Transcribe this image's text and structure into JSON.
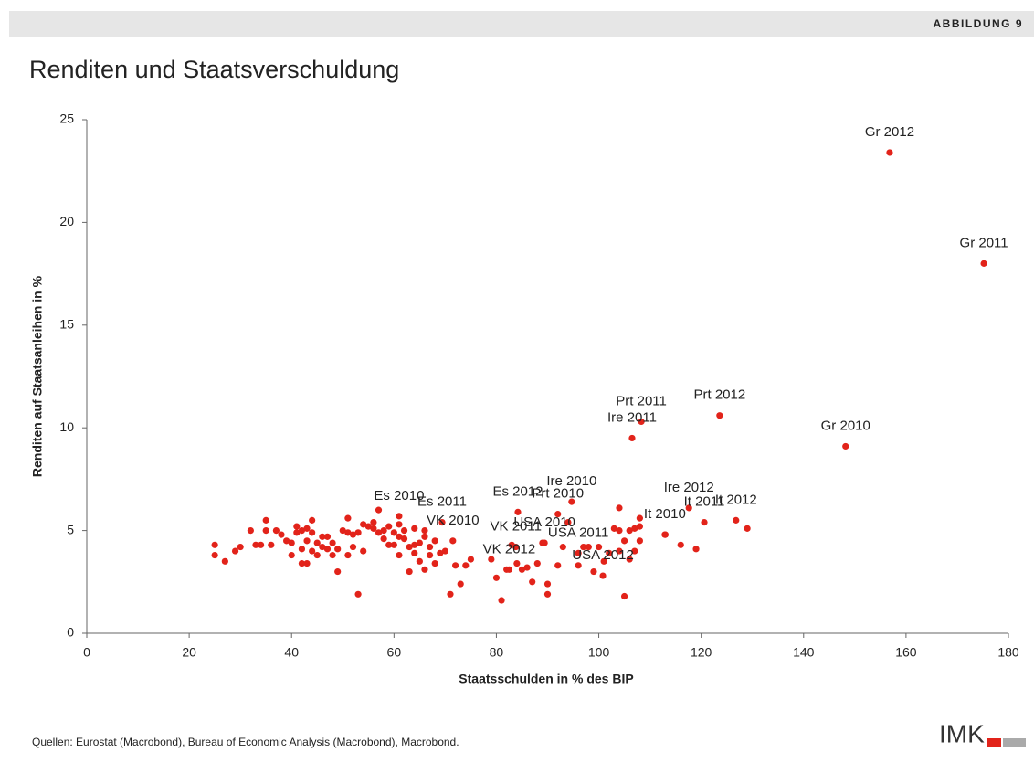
{
  "header": {
    "figure": "ABBILDUNG 9"
  },
  "footer": {
    "source": "Quellen: Eurostat (Macrobond), Bureau of Economic Analysis (Macrobond), Macrobond.",
    "logo": "IMK"
  },
  "chart_data": {
    "type": "scatter",
    "title": "Renditen und Staatsverschuldung",
    "x_label": "Staatsschulden in % des BIP",
    "y_label": "Renditen auf Staatsanleihen in %",
    "xlim": [
      0,
      180
    ],
    "xticks": [
      0,
      20,
      40,
      60,
      80,
      100,
      120,
      140,
      160,
      180
    ],
    "ylim": [
      0,
      25
    ],
    "yticks": [
      0,
      5,
      10,
      15,
      20,
      25
    ],
    "series": [
      {
        "color": "#e2231a",
        "x": [
          25,
          25,
          27,
          29,
          30,
          32,
          33,
          34,
          35,
          35,
          36,
          37,
          38,
          39,
          40,
          40,
          41,
          41,
          42,
          42,
          42,
          43,
          43,
          43,
          44,
          44,
          44,
          45,
          45,
          46,
          46,
          47,
          47,
          48,
          48,
          49,
          49,
          50,
          51,
          51,
          51,
          52,
          52,
          53,
          53,
          54,
          54,
          55,
          56,
          56,
          57,
          57,
          58,
          58,
          59,
          59,
          60,
          60,
          61,
          61,
          61,
          62,
          62,
          63,
          63,
          64,
          64,
          64,
          65,
          65,
          66,
          66,
          66,
          67,
          67,
          68,
          68,
          69,
          70,
          71,
          72,
          73,
          74,
          75,
          79,
          80,
          81,
          82,
          83,
          84,
          85,
          86,
          87,
          88,
          89,
          90,
          90,
          92,
          93,
          94,
          96,
          97,
          98,
          99,
          100,
          101,
          102,
          103,
          104,
          104,
          104,
          105,
          105,
          106,
          106,
          107,
          107,
          108,
          108,
          108,
          113,
          116,
          119,
          129
        ],
        "y": [
          4.3,
          3.8,
          3.5,
          4.0,
          4.2,
          5.0,
          4.3,
          4.3,
          5.5,
          5.0,
          4.3,
          5.0,
          4.8,
          4.5,
          3.8,
          4.4,
          5.2,
          4.9,
          5.0,
          4.1,
          3.4,
          5.1,
          4.5,
          3.4,
          5.5,
          4.9,
          4.0,
          4.4,
          3.8,
          4.7,
          4.2,
          4.7,
          4.1,
          3.8,
          4.4,
          3.0,
          4.1,
          5.0,
          5.6,
          4.9,
          3.8,
          4.8,
          4.2,
          4.9,
          1.9,
          5.3,
          4.0,
          5.2,
          5.4,
          5.1,
          6.0,
          4.9,
          5.0,
          4.6,
          4.3,
          5.2,
          4.9,
          4.3,
          5.3,
          4.7,
          3.8,
          5.0,
          4.6,
          4.2,
          3.0,
          4.3,
          3.9,
          5.1,
          4.4,
          3.5,
          5.0,
          4.7,
          3.1,
          4.2,
          3.8,
          4.5,
          3.4,
          3.9,
          4.0,
          1.9,
          3.3,
          2.4,
          3.3,
          3.6,
          3.6,
          2.7,
          1.6,
          3.1,
          4.3,
          3.4,
          3.1,
          3.2,
          2.5,
          3.4,
          4.4,
          1.9,
          2.4,
          3.3,
          4.2,
          5.4,
          3.3,
          4.2,
          4.2,
          3.0,
          4.2,
          3.5,
          3.9,
          5.1,
          4.0,
          5.0,
          6.1,
          1.8,
          4.5,
          3.6,
          5.0,
          5.1,
          4.0,
          4.5,
          5.6,
          5.2,
          4.8,
          4.3,
          4.1,
          5.1
        ]
      },
      {
        "color": "#e2231a",
        "x": [
          156.8,
          175.2,
          148.2,
          123.6,
          108.3,
          106.5,
          69.4,
          84.2,
          94.7,
          92.0,
          117.6,
          120.6,
          126.8,
          112.9,
          61,
          71.5,
          83.8,
          82.5,
          89.4,
          96,
          100.8
        ],
        "y": [
          23.4,
          18.0,
          9.1,
          10.6,
          10.3,
          9.5,
          5.4,
          5.9,
          6.4,
          5.8,
          6.1,
          5.4,
          5.5,
          4.8,
          5.7,
          4.5,
          4.2,
          3.1,
          4.4,
          3.9,
          2.8
        ],
        "labels": [
          "Gr 2012",
          "Gr 2011",
          "Gr 2010",
          "Prt 2012",
          "Prt 2011",
          "Ire 2011",
          "Es 2011",
          "Es 2012",
          "Ire 2010",
          "Prt 2010",
          "Ire 2012",
          "It 2011",
          "It 2012",
          "It 2010",
          "Es 2010",
          "VK 2010",
          "VK 2011",
          "VK 2012",
          "USA 2010",
          "USA 2011",
          "USA 2012"
        ]
      }
    ]
  }
}
